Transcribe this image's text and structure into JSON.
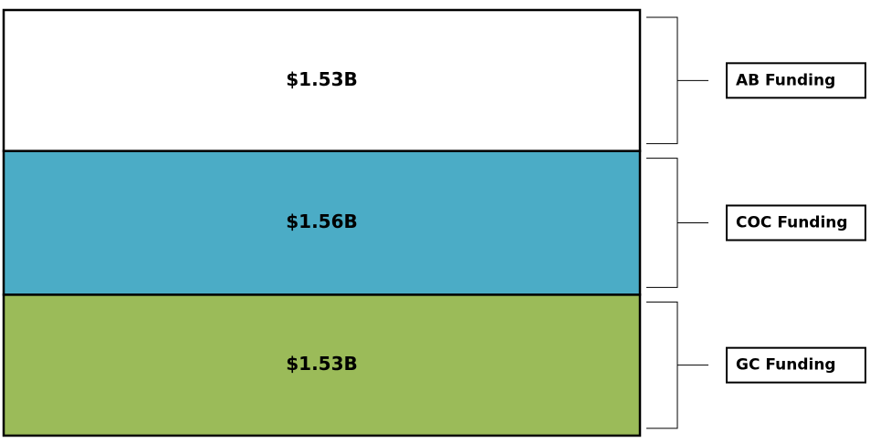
{
  "chart_data": {
    "type": "stacked-bar",
    "series": [
      {
        "name": "GC Funding",
        "color": "#9bbb59",
        "values": [
          1.53
        ],
        "value_labels": [
          "$1.53B"
        ]
      },
      {
        "name": "COC Funding",
        "color": "#4bacc6",
        "values": [
          1.56
        ],
        "value_labels": [
          "$1.56B"
        ]
      },
      {
        "name": "AB Funding",
        "color": "#ffffff",
        "values": [
          1.53
        ],
        "value_labels": [
          "$1.53B"
        ]
      }
    ]
  }
}
